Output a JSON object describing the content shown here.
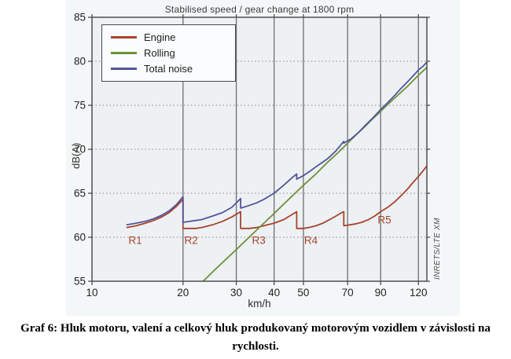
{
  "chart_data": {
    "type": "line",
    "title": "Stabilised speed / gear change at 1800 rpm",
    "xlabel": "km/h",
    "ylabel": "dB(A)",
    "watermark": "INRETS/LTE XM",
    "x_scale": "log",
    "xlim": [
      10,
      128
    ],
    "ylim": [
      55,
      85
    ],
    "x_ticks": [
      10,
      20,
      30,
      40,
      50,
      70,
      90,
      120
    ],
    "y_ticks": [
      55,
      60,
      65,
      70,
      75,
      80,
      85
    ],
    "x_gridlines": [
      20,
      30,
      40,
      50,
      70,
      90,
      120
    ],
    "y_gridlines": [
      60,
      65,
      70,
      75,
      80
    ],
    "legend_position": "top-left",
    "gear_change_speeds_kmh": [
      20,
      31,
      47.5,
      68
    ],
    "colors": {
      "plot_bg": "#edf1f4",
      "grid": "#8a8a8a",
      "grid_major": "#6e6e6e",
      "border": "#4f4f4f",
      "tick_text": "#222222",
      "annotation": "#a8432c"
    },
    "series": [
      {
        "name": "Engine",
        "color": "#a8432c",
        "points": [
          [
            13,
            61.1
          ],
          [
            14,
            61.3
          ],
          [
            15,
            61.6
          ],
          [
            16,
            61.9
          ],
          [
            17,
            62.3
          ],
          [
            18,
            62.8
          ],
          [
            19,
            63.5
          ],
          [
            20,
            64.3
          ],
          [
            20,
            61.0
          ],
          [
            22,
            61.0
          ],
          [
            23,
            61.1
          ],
          [
            25,
            61.4
          ],
          [
            27,
            61.8
          ],
          [
            29,
            62.3
          ],
          [
            31,
            62.9
          ],
          [
            31,
            61.0
          ],
          [
            33,
            61.0
          ],
          [
            35,
            61.1
          ],
          [
            37,
            61.3
          ],
          [
            40,
            61.6
          ],
          [
            43,
            62.0
          ],
          [
            46,
            62.6
          ],
          [
            47.5,
            62.9
          ],
          [
            47.5,
            61.0
          ],
          [
            50,
            61.0
          ],
          [
            52,
            61.1
          ],
          [
            55,
            61.3
          ],
          [
            58,
            61.6
          ],
          [
            61,
            62.0
          ],
          [
            64,
            62.4
          ],
          [
            67,
            62.8
          ],
          [
            68,
            62.9
          ],
          [
            68,
            61.3
          ],
          [
            71,
            61.4
          ],
          [
            74,
            61.5
          ],
          [
            78,
            61.7
          ],
          [
            82,
            62.0
          ],
          [
            86,
            62.4
          ],
          [
            90,
            62.9
          ],
          [
            95,
            63.4
          ],
          [
            100,
            64.0
          ],
          [
            105,
            64.7
          ],
          [
            110,
            65.4
          ],
          [
            115,
            66.2
          ],
          [
            120,
            66.9
          ],
          [
            124,
            67.5
          ],
          [
            128,
            68.1
          ]
        ]
      },
      {
        "name": "Rolling",
        "color": "#6f9038",
        "points": [
          [
            23.3,
            55.0
          ],
          [
            26,
            56.6
          ],
          [
            30,
            58.6
          ],
          [
            35,
            60.8
          ],
          [
            40,
            62.7
          ],
          [
            45,
            64.4
          ],
          [
            50,
            65.9
          ],
          [
            55,
            67.2
          ],
          [
            60,
            68.5
          ],
          [
            65,
            69.6
          ],
          [
            70,
            70.7
          ],
          [
            75,
            71.7
          ],
          [
            80,
            72.6
          ],
          [
            85,
            73.5
          ],
          [
            90,
            74.3
          ],
          [
            95,
            75.1
          ],
          [
            100,
            75.8
          ],
          [
            110,
            77.1
          ],
          [
            120,
            78.4
          ],
          [
            128,
            79.3
          ]
        ]
      },
      {
        "name": "Total noise",
        "color": "#54549a",
        "points": [
          [
            13,
            61.4
          ],
          [
            14,
            61.6
          ],
          [
            15,
            61.8
          ],
          [
            16,
            62.1
          ],
          [
            17,
            62.5
          ],
          [
            18,
            63.0
          ],
          [
            19,
            63.7
          ],
          [
            20,
            64.6
          ],
          [
            20,
            61.7
          ],
          [
            22,
            61.9
          ],
          [
            23,
            62.0
          ],
          [
            25,
            62.4
          ],
          [
            27,
            62.8
          ],
          [
            29,
            63.4
          ],
          [
            31,
            64.4
          ],
          [
            31,
            63.3
          ],
          [
            33,
            63.6
          ],
          [
            35,
            63.9
          ],
          [
            37,
            64.3
          ],
          [
            40,
            65.0
          ],
          [
            43,
            65.9
          ],
          [
            46,
            66.8
          ],
          [
            47.5,
            67.2
          ],
          [
            47.5,
            66.6
          ],
          [
            50,
            67.0
          ],
          [
            53,
            67.6
          ],
          [
            56,
            68.2
          ],
          [
            60,
            68.9
          ],
          [
            64,
            69.8
          ],
          [
            68,
            70.9
          ],
          [
            68,
            70.7
          ],
          [
            72,
            71.2
          ],
          [
            76,
            71.9
          ],
          [
            80,
            72.7
          ],
          [
            85,
            73.6
          ],
          [
            90,
            74.5
          ],
          [
            95,
            75.3
          ],
          [
            100,
            76.1
          ],
          [
            105,
            76.9
          ],
          [
            110,
            77.6
          ],
          [
            115,
            78.3
          ],
          [
            120,
            79.0
          ],
          [
            124,
            79.4
          ],
          [
            128,
            79.9
          ]
        ]
      }
    ],
    "annotations": [
      {
        "text": "R1",
        "x": 13.2,
        "y": 59.6
      },
      {
        "text": "R2",
        "x": 20.2,
        "y": 59.6
      },
      {
        "text": "R3",
        "x": 33.8,
        "y": 59.6
      },
      {
        "text": "R4",
        "x": 50.3,
        "y": 59.6
      },
      {
        "text": "R5",
        "x": 88.0,
        "y": 61.9
      }
    ]
  },
  "caption": {
    "lines": [
      "Graf 6: Hluk motoru, valení a celkový hluk produkovaný motorovým vozidlem v závislosti na",
      "rychlosti."
    ]
  }
}
